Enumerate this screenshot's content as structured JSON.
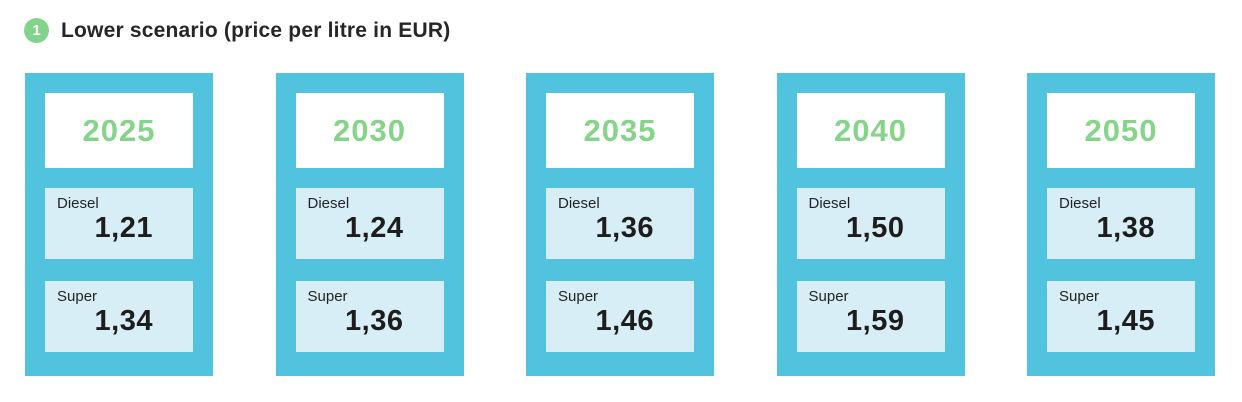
{
  "header": {
    "badge": "1",
    "title": "Lower scenario (price per litre in EUR)"
  },
  "colors": {
    "teal": "#52c3de",
    "light_blue": "#d8eef6",
    "green": "#85d489",
    "badge_green": "#82d48c",
    "text_dark": "#1d1d1d"
  },
  "cards": [
    {
      "year": "2025",
      "fuels": [
        {
          "label": "Diesel",
          "value": "1,21"
        },
        {
          "label": "Super",
          "value": "1,34"
        }
      ]
    },
    {
      "year": "2030",
      "fuels": [
        {
          "label": "Diesel",
          "value": "1,24"
        },
        {
          "label": "Super",
          "value": "1,36"
        }
      ]
    },
    {
      "year": "2035",
      "fuels": [
        {
          "label": "Diesel",
          "value": "1,36"
        },
        {
          "label": "Super",
          "value": "1,46"
        }
      ]
    },
    {
      "year": "2040",
      "fuels": [
        {
          "label": "Diesel",
          "value": "1,50"
        },
        {
          "label": "Super",
          "value": "1,59"
        }
      ]
    },
    {
      "year": "2050",
      "fuels": [
        {
          "label": "Diesel",
          "value": "1,38"
        },
        {
          "label": "Super",
          "value": "1,45"
        }
      ]
    }
  ],
  "chart_data": {
    "type": "table",
    "title": "Lower scenario (price per litre in EUR)",
    "unit": "EUR per litre",
    "categories": [
      "2025",
      "2030",
      "2035",
      "2040",
      "2050"
    ],
    "series": [
      {
        "name": "Diesel",
        "values": [
          1.21,
          1.24,
          1.36,
          1.5,
          1.38
        ]
      },
      {
        "name": "Super",
        "values": [
          1.34,
          1.36,
          1.46,
          1.59,
          1.45
        ]
      }
    ],
    "layout": "five cards left-to-right, each card shows year then Diesel and Super prices"
  }
}
